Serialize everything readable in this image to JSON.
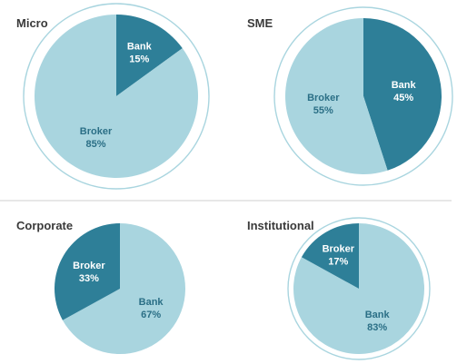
{
  "colors": {
    "light": "#a9d5df",
    "dark": "#2e7f98",
    "light_text": "#2b6f86",
    "dark_text": "#ffffff",
    "outline": "#a9d5df",
    "divider": "#cfcfcf",
    "title": "#3a3a3a"
  },
  "chart_data": [
    {
      "type": "pie",
      "title": "Micro",
      "outlined": true,
      "slices": [
        {
          "label": "Bank",
          "value": 15,
          "display": "15%",
          "color": "dark",
          "start": "top",
          "direction": "clockwise"
        },
        {
          "label": "Broker",
          "value": 85,
          "display": "85%",
          "color": "light"
        }
      ]
    },
    {
      "type": "pie",
      "title": "SME",
      "outlined": true,
      "slices": [
        {
          "label": "Bank",
          "value": 45,
          "display": "45%",
          "color": "dark",
          "start": "top",
          "direction": "clockwise"
        },
        {
          "label": "Broker",
          "value": 55,
          "display": "55%",
          "color": "light"
        }
      ]
    },
    {
      "type": "pie",
      "title": "Corporate",
      "outlined": false,
      "slices": [
        {
          "label": "Bank",
          "value": 67,
          "display": "67%",
          "color": "light",
          "start": "top",
          "direction": "clockwise"
        },
        {
          "label": "Broker",
          "value": 33,
          "display": "33%",
          "color": "dark"
        }
      ]
    },
    {
      "type": "pie",
      "title": "Institutional",
      "outlined": true,
      "slices": [
        {
          "label": "Bank",
          "value": 83,
          "display": "83%",
          "color": "light",
          "start": "top",
          "direction": "clockwise"
        },
        {
          "label": "Broker",
          "value": 17,
          "display": "17%",
          "color": "dark"
        }
      ]
    }
  ]
}
